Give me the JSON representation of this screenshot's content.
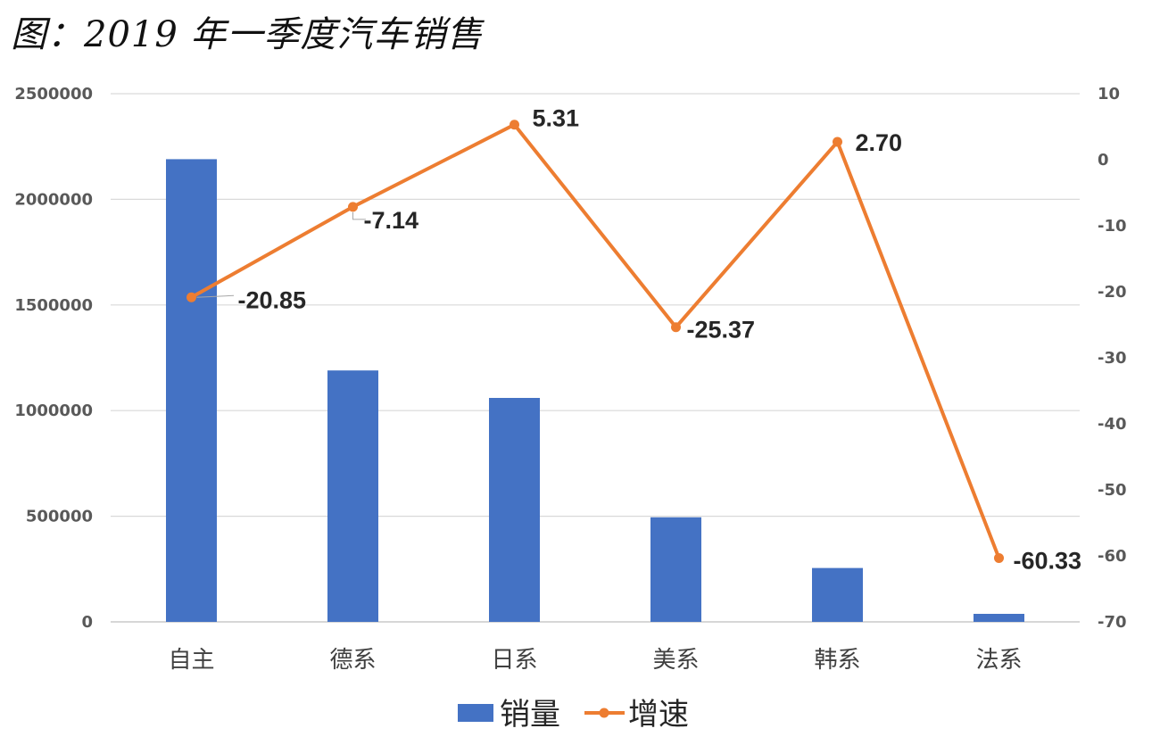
{
  "title": "图：2019 年一季度汽车销售",
  "chart_data": {
    "type": "bar",
    "categories": [
      "自主",
      "德系",
      "日系",
      "美系",
      "韩系",
      "法系"
    ],
    "series": [
      {
        "name": "销量",
        "type": "bar",
        "axis": "left",
        "color": "#4472C4",
        "values": [
          2190000,
          1190000,
          1060000,
          495000,
          255000,
          38000
        ]
      },
      {
        "name": "增速",
        "type": "line",
        "axis": "right",
        "color": "#ED7D31",
        "values": [
          -20.85,
          -7.14,
          5.31,
          -25.37,
          2.7,
          -60.33
        ],
        "labels": [
          "-20.85",
          "-7.14",
          "5.31",
          "-25.37",
          "2.70",
          "-60.33"
        ]
      }
    ],
    "y_left": {
      "range": [
        0,
        2500000
      ],
      "ticks": [
        "0",
        "500000",
        "1000000",
        "1500000",
        "2000000",
        "2500000"
      ]
    },
    "y_right": {
      "range": [
        -70,
        10
      ],
      "ticks": [
        "-70",
        "-60",
        "-50",
        "-40",
        "-30",
        "-20",
        "-10",
        "0",
        "10"
      ]
    },
    "grid": true,
    "legend": "bottom-center"
  }
}
